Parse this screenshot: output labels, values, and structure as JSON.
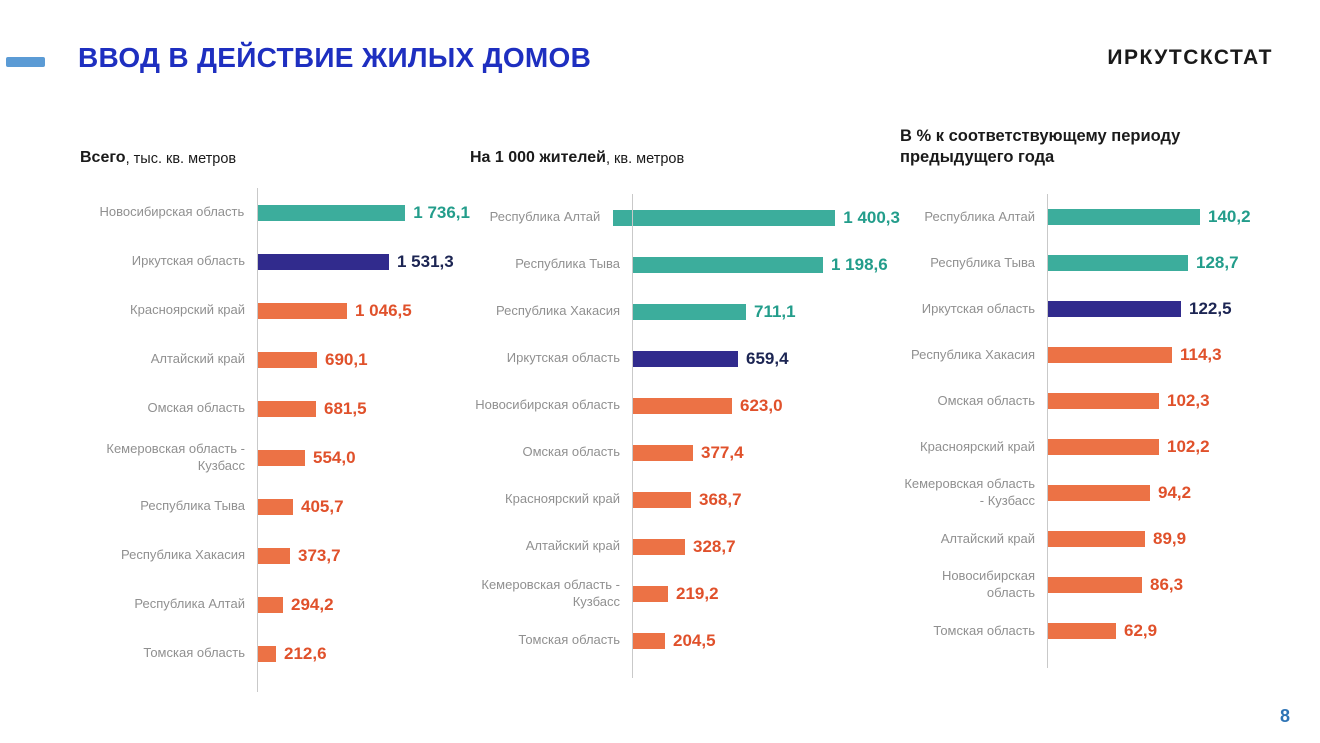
{
  "page": {
    "title": "ВВОД В ДЕЙСТВИЕ ЖИЛЫХ ДОМОВ",
    "brand": "ИРКУТСКСТАТ",
    "page_number": "8"
  },
  "colors": {
    "teal": "#3CAD9C",
    "orange": "#EC7245",
    "blue": "#312B8D",
    "teal_text": "#239D8B",
    "orange_text": "#E0512B",
    "blue_text": "#1C2553",
    "title_blue": "#1E2FC0",
    "accent": "#5B9BD5",
    "label_gray": "#909090"
  },
  "chart_data": [
    {
      "type": "bar",
      "orientation": "horizontal",
      "title": "Всего",
      "title_suffix": ", тыс. кв. метров",
      "axis_max": 1736.1,
      "legend": "none",
      "grid": false,
      "categories": [
        "Новосибирская область",
        "Иркутская область",
        "Красноярский край",
        "Алтайский край",
        "Омская область",
        "Кемеровская область - Кузбасс",
        "Республика Тыва",
        "Республика Хакасия",
        "Республика Алтай",
        "Томская область"
      ],
      "values": [
        1736.1,
        1531.3,
        1046.5,
        690.1,
        681.5,
        554.0,
        405.7,
        373.7,
        294.2,
        212.6
      ],
      "rows": [
        {
          "label": "Новосибирская область",
          "value": 1736.1,
          "display": "1 736,1",
          "color": "teal"
        },
        {
          "label": "Иркутская область",
          "value": 1531.3,
          "display": "1 531,3",
          "color": "blue"
        },
        {
          "label": "Красноярский край",
          "value": 1046.5,
          "display": "1 046,5",
          "color": "orange"
        },
        {
          "label": "Алтайский край",
          "value": 690.1,
          "display": "690,1",
          "color": "orange"
        },
        {
          "label": "Омская область",
          "value": 681.5,
          "display": "681,5",
          "color": "orange"
        },
        {
          "label": "Кемеровская область - Кузбасс",
          "value": 554.0,
          "display": "554,0",
          "color": "orange"
        },
        {
          "label": "Республика Тыва",
          "value": 405.7,
          "display": "405,7",
          "color": "orange"
        },
        {
          "label": "Республика Хакасия",
          "value": 373.7,
          "display": "373,7",
          "color": "orange"
        },
        {
          "label": "Республика Алтай",
          "value": 294.2,
          "display": "294,2",
          "color": "orange"
        },
        {
          "label": "Томская область",
          "value": 212.6,
          "display": "212,6",
          "color": "orange"
        }
      ]
    },
    {
      "type": "bar",
      "orientation": "horizontal",
      "title": "На 1 000 жителей",
      "title_suffix": ", кв. метров",
      "axis_max": 1400.3,
      "legend": "none",
      "grid": false,
      "categories": [
        "Республика Алтай",
        "Республика Тыва",
        "Республика Хакасия",
        "Иркутская область",
        "Новосибирская область",
        "Омская область",
        "Красноярский край",
        "Алтайский край",
        "Кемеровская область - Кузбасс",
        "Томская область"
      ],
      "values": [
        1400.3,
        1198.6,
        711.1,
        659.4,
        623.0,
        377.4,
        368.7,
        328.7,
        219.2,
        204.5
      ],
      "rows": [
        {
          "label": "Республика Алтай",
          "value": 1400.3,
          "display": "1 400,3",
          "color": "teal"
        },
        {
          "label": "Республика Тыва",
          "value": 1198.6,
          "display": "1 198,6",
          "color": "teal"
        },
        {
          "label": "Республика Хакасия",
          "value": 711.1,
          "display": "711,1",
          "color": "teal"
        },
        {
          "label": "Иркутская область",
          "value": 659.4,
          "display": "659,4",
          "color": "blue"
        },
        {
          "label": "Новосибирская область",
          "value": 623.0,
          "display": "623,0",
          "color": "orange"
        },
        {
          "label": "Омская область",
          "value": 377.4,
          "display": "377,4",
          "color": "orange"
        },
        {
          "label": "Красноярский край",
          "value": 368.7,
          "display": "368,7",
          "color": "orange"
        },
        {
          "label": "Алтайский край",
          "value": 328.7,
          "display": "328,7",
          "color": "orange"
        },
        {
          "label": "Кемеровская область - Кузбасс",
          "value": 219.2,
          "display": "219,2",
          "color": "orange"
        },
        {
          "label": "Томская область",
          "value": 204.5,
          "display": "204,5",
          "color": "orange"
        }
      ]
    },
    {
      "type": "bar",
      "orientation": "horizontal",
      "title": "В % к соответствующему периоду предыдущего года",
      "title_suffix": "",
      "axis_max": 140.2,
      "legend": "none",
      "grid": false,
      "categories": [
        "Республика Алтай",
        "Республика Тыва",
        "Иркутская область",
        "Республика Хакасия",
        "Омская область",
        "Красноярский край",
        "Кемеровская область - Кузбасс",
        "Алтайский край",
        "Новосибирская область",
        "Томская область"
      ],
      "values": [
        140.2,
        128.7,
        122.5,
        114.3,
        102.3,
        102.2,
        94.2,
        89.9,
        86.3,
        62.9
      ],
      "rows": [
        {
          "label": "Республика Алтай",
          "value": 140.2,
          "display": "140,2",
          "color": "teal"
        },
        {
          "label": "Республика Тыва",
          "value": 128.7,
          "display": "128,7",
          "color": "teal"
        },
        {
          "label": "Иркутская область",
          "value": 122.5,
          "display": "122,5",
          "color": "blue"
        },
        {
          "label": "Республика Хакасия",
          "value": 114.3,
          "display": "114,3",
          "color": "orange"
        },
        {
          "label": "Омская область",
          "value": 102.3,
          "display": "102,3",
          "color": "orange"
        },
        {
          "label": "Красноярский край",
          "value": 102.2,
          "display": "102,2",
          "color": "orange"
        },
        {
          "label": "Кемеровская область - Кузбасс",
          "value": 94.2,
          "display": "94,2",
          "color": "orange"
        },
        {
          "label": "Алтайский край",
          "value": 89.9,
          "display": "89,9",
          "color": "orange"
        },
        {
          "label": "Новосибирская область",
          "value": 86.3,
          "display": "86,3",
          "color": "orange"
        },
        {
          "label": "Томская область",
          "value": 62.9,
          "display": "62,9",
          "color": "orange"
        }
      ]
    }
  ]
}
